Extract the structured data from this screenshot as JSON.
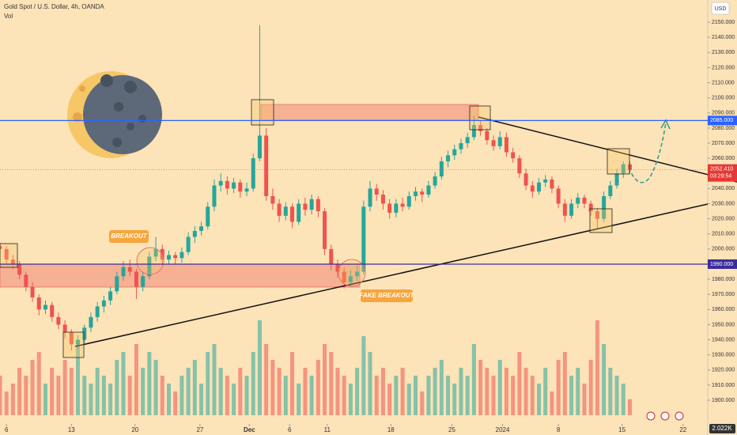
{
  "chart_data": {
    "type": "candlestick",
    "title": "Gold Spot / U.S. Dollar, 4h, OANDA",
    "volume_title": "Vol",
    "currency": "USD",
    "up_color": "#26a69a",
    "down_color": "#ef5350",
    "x": [
      -0.5,
      0,
      0.5,
      1,
      1.5,
      2,
      2.5,
      3,
      3.5,
      4,
      4.5,
      5,
      5.5,
      6,
      6.5,
      7,
      7.5,
      8,
      8.5,
      9,
      9.5,
      10,
      10.5,
      11,
      11.5,
      12,
      12.5,
      13,
      13.5,
      14,
      14.5,
      15,
      15.5,
      16,
      16.5,
      17,
      17.5,
      18,
      18.5,
      19,
      19.5,
      20,
      20.5,
      21,
      21.5,
      22,
      22.5,
      23,
      23.5,
      24,
      24.5,
      25,
      25.5,
      26,
      26.5,
      27,
      27.5,
      28,
      28.5,
      29,
      29.5,
      30,
      30.5,
      31,
      31.5,
      32,
      32.5,
      33,
      33.5,
      34,
      34.5,
      35,
      35.5,
      36,
      36.5,
      37,
      37.5,
      38,
      38.5,
      39,
      39.5,
      40,
      40.5,
      41,
      41.5,
      42,
      42.5,
      43,
      43.5,
      44,
      44.5,
      45,
      45.5,
      46,
      46.5,
      47,
      47.5,
      48
    ],
    "ohlc": [
      [
        2002,
        2004,
        1997,
        2000
      ],
      [
        2000,
        2002,
        1990,
        1993
      ],
      [
        1993,
        1996,
        1987,
        1990
      ],
      [
        1990,
        1992,
        1980,
        1983
      ],
      [
        1983,
        1985,
        1972,
        1975
      ],
      [
        1975,
        1978,
        1965,
        1968
      ],
      [
        1968,
        1970,
        1956,
        1960
      ],
      [
        1960,
        1966,
        1957,
        1963
      ],
      [
        1963,
        1965,
        1952,
        1955
      ],
      [
        1955,
        1958,
        1947,
        1950
      ],
      [
        1950,
        1953,
        1941,
        1945
      ],
      [
        1945,
        1947,
        1933,
        1937
      ],
      [
        1937,
        1943,
        1934,
        1940
      ],
      [
        1940,
        1950,
        1938,
        1948
      ],
      [
        1948,
        1958,
        1945,
        1955
      ],
      [
        1955,
        1965,
        1952,
        1962
      ],
      [
        1962,
        1969,
        1958,
        1966
      ],
      [
        1966,
        1975,
        1963,
        1972
      ],
      [
        1972,
        1985,
        1970,
        1982
      ],
      [
        1982,
        1992,
        1979,
        1988
      ],
      [
        1988,
        1993,
        1982,
        1985
      ],
      [
        1985,
        1987,
        1967,
        1975
      ],
      [
        1975,
        1985,
        1972,
        1982
      ],
      [
        1982,
        1998,
        1980,
        1995
      ],
      [
        1995,
        2008,
        1992,
        2000
      ],
      [
        2000,
        2003,
        1989,
        1993
      ],
      [
        1993,
        1999,
        1990,
        1996
      ],
      [
        1996,
        1998,
        1990,
        1994
      ],
      [
        1994,
        2001,
        1991,
        1998
      ],
      [
        1998,
        2011,
        1996,
        2008
      ],
      [
        2008,
        2015,
        2004,
        2012
      ],
      [
        2012,
        2018,
        2009,
        2015
      ],
      [
        2015,
        2031,
        2013,
        2028
      ],
      [
        2028,
        2046,
        2025,
        2042
      ],
      [
        2042,
        2050,
        2038,
        2045
      ],
      [
        2045,
        2048,
        2036,
        2040
      ],
      [
        2040,
        2047,
        2037,
        2044
      ],
      [
        2044,
        2046,
        2034,
        2038
      ],
      [
        2038,
        2044,
        2035,
        2040
      ],
      [
        2040,
        2063,
        2038,
        2060
      ],
      [
        2060,
        2148,
        2058,
        2075
      ],
      [
        2075,
        2080,
        2032,
        2035
      ],
      [
        2035,
        2040,
        2026,
        2030
      ],
      [
        2030,
        2033,
        2018,
        2022
      ],
      [
        2022,
        2031,
        2019,
        2028
      ],
      [
        2028,
        2030,
        2014,
        2018
      ],
      [
        2018,
        2033,
        2016,
        2030
      ],
      [
        2030,
        2034,
        2022,
        2026
      ],
      [
        2026,
        2036,
        2023,
        2033
      ],
      [
        2033,
        2035,
        2021,
        2025
      ],
      [
        2025,
        2027,
        1996,
        2000
      ],
      [
        2000,
        2003,
        1986,
        1990
      ],
      [
        1990,
        1993,
        1981,
        1985
      ],
      [
        1985,
        1988,
        1974,
        1978
      ],
      [
        1978,
        1986,
        1975,
        1982
      ],
      [
        1982,
        1989,
        1979,
        1985
      ],
      [
        1985,
        2032,
        1983,
        2028
      ],
      [
        2028,
        2045,
        2025,
        2040
      ],
      [
        2040,
        2043,
        2032,
        2036
      ],
      [
        2036,
        2039,
        2026,
        2030
      ],
      [
        2030,
        2033,
        2020,
        2024
      ],
      [
        2024,
        2033,
        2021,
        2030
      ],
      [
        2030,
        2034,
        2025,
        2028
      ],
      [
        2028,
        2038,
        2026,
        2035
      ],
      [
        2035,
        2041,
        2032,
        2038
      ],
      [
        2038,
        2040,
        2031,
        2036
      ],
      [
        2036,
        2045,
        2034,
        2042
      ],
      [
        2042,
        2051,
        2040,
        2048
      ],
      [
        2048,
        2061,
        2046,
        2058
      ],
      [
        2058,
        2065,
        2054,
        2062
      ],
      [
        2062,
        2069,
        2059,
        2066
      ],
      [
        2066,
        2073,
        2063,
        2070
      ],
      [
        2070,
        2077,
        2067,
        2074
      ],
      [
        2074,
        2088,
        2072,
        2082
      ],
      [
        2082,
        2085,
        2075,
        2078
      ],
      [
        2078,
        2080,
        2069,
        2072
      ],
      [
        2072,
        2075,
        2065,
        2068
      ],
      [
        2068,
        2078,
        2066,
        2074
      ],
      [
        2074,
        2077,
        2061,
        2064
      ],
      [
        2064,
        2067,
        2057,
        2060
      ],
      [
        2060,
        2062,
        2047,
        2050
      ],
      [
        2050,
        2053,
        2039,
        2042
      ],
      [
        2042,
        2045,
        2034,
        2038
      ],
      [
        2038,
        2047,
        2036,
        2044
      ],
      [
        2044,
        2049,
        2041,
        2046
      ],
      [
        2046,
        2048,
        2037,
        2040
      ],
      [
        2040,
        2042,
        2027,
        2030
      ],
      [
        2030,
        2033,
        2018,
        2022
      ],
      [
        2022,
        2033,
        2020,
        2030
      ],
      [
        2030,
        2037,
        2027,
        2034
      ],
      [
        2034,
        2036,
        2027,
        2030
      ],
      [
        2030,
        2032,
        2022,
        2025
      ],
      [
        2025,
        2027,
        2013,
        2020
      ],
      [
        2020,
        2038,
        2018,
        2035
      ],
      [
        2035,
        2045,
        2033,
        2042
      ],
      [
        2042,
        2053,
        2040,
        2050
      ],
      [
        2050,
        2058,
        2047,
        2056
      ],
      [
        2056,
        2058,
        2050,
        2052.41
      ]
    ],
    "volume": [
      5,
      3,
      4,
      6,
      5,
      7,
      8,
      4,
      6,
      5,
      7,
      6,
      9,
      5,
      4,
      6,
      5,
      4,
      7,
      8,
      5,
      9,
      6,
      8,
      7,
      5,
      4,
      3,
      5,
      6,
      7,
      4,
      8,
      9,
      6,
      5,
      4,
      6,
      5,
      8,
      12,
      9,
      7,
      6,
      5,
      8,
      4,
      6,
      5,
      7,
      9,
      8,
      6,
      5,
      4,
      6,
      10,
      8,
      5,
      6,
      4,
      5,
      6,
      4,
      5,
      3,
      5,
      6,
      7,
      5,
      4,
      6,
      5,
      9,
      7,
      6,
      5,
      7,
      6,
      5,
      8,
      6,
      5,
      4,
      6,
      3,
      7,
      8,
      5,
      6,
      4,
      7,
      12,
      9,
      6,
      5,
      4,
      2.022
    ],
    "vlim": [
      0,
      14
    ],
    "last_volume_label": "2.022K",
    "last_price_label": "2052.410",
    "countdown": "03:29:54",
    "xlim": [
      -0.5,
      54
    ],
    "ylim": [
      1877,
      2164.7
    ],
    "xticks": [
      {
        "value": 0,
        "label": "6"
      },
      {
        "value": 5,
        "label": "13"
      },
      {
        "value": 9.9,
        "label": "20"
      },
      {
        "value": 14.9,
        "label": "27"
      },
      {
        "value": 18.7,
        "label": "Dec"
      },
      {
        "value": 21.8,
        "label": "6"
      },
      {
        "value": 24.7,
        "label": "11"
      },
      {
        "value": 29.6,
        "label": "18"
      },
      {
        "value": 34.3,
        "label": "25"
      },
      {
        "value": 38.2,
        "label": "2024"
      },
      {
        "value": 42.5,
        "label": "8"
      },
      {
        "value": 47.4,
        "label": "15"
      },
      {
        "value": 52.1,
        "label": "22"
      }
    ],
    "yticks": [
      {
        "value": 1900,
        "label": "1900.000"
      },
      {
        "value": 1910,
        "label": "1910.000"
      },
      {
        "value": 1920,
        "label": "1920.000"
      },
      {
        "value": 1930,
        "label": "1930.000"
      },
      {
        "value": 1940,
        "label": "1940.000"
      },
      {
        "value": 1950,
        "label": "1950.000"
      },
      {
        "value": 1960,
        "label": "1960.000"
      },
      {
        "value": 1970,
        "label": "1970.000"
      },
      {
        "value": 1980,
        "label": "1980.000"
      },
      {
        "value": 1990,
        "label": "1990.000"
      },
      {
        "value": 2000,
        "label": "2000.000"
      },
      {
        "value": 2010,
        "label": "2010.000"
      },
      {
        "value": 2020,
        "label": "2020.000"
      },
      {
        "value": 2030,
        "label": "2030.000"
      },
      {
        "value": 2040,
        "label": "2040.000"
      },
      {
        "value": 2050,
        "label": "2050.000"
      },
      {
        "value": 2060,
        "label": "2060.000"
      },
      {
        "value": 2070,
        "label": "2070.000"
      },
      {
        "value": 2080,
        "label": "2080.000"
      },
      {
        "value": 2090,
        "label": "2090.000"
      },
      {
        "value": 2100,
        "label": "2100.000"
      },
      {
        "value": 2110,
        "label": "2110.000"
      },
      {
        "value": 2120,
        "label": "2120.000"
      },
      {
        "value": 2130,
        "label": "2130.000"
      },
      {
        "value": 2140,
        "label": "2140.000"
      },
      {
        "value": 2150,
        "label": "2150.000"
      }
    ],
    "levels": [
      {
        "value": 2085,
        "label": "2085.000",
        "color": "#2962ff"
      },
      {
        "value": 1990,
        "label": "1990.000",
        "color": "#3b2c9e"
      }
    ],
    "annotations": [
      "BREAKOUT",
      "FAKE BREAKOUT"
    ]
  }
}
